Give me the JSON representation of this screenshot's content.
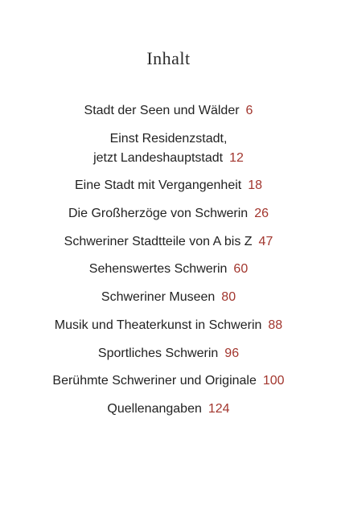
{
  "title": "Inhalt",
  "colors": {
    "text": "#222222",
    "page_number": "#a2362e"
  },
  "entries": [
    {
      "text": "Stadt der Seen und Wälder",
      "page": "6"
    },
    {
      "line1": "Einst Residenzstadt,",
      "line2": "jetzt Landeshauptstadt",
      "page": "12"
    },
    {
      "text": "Eine Stadt mit Vergangenheit",
      "page": "18"
    },
    {
      "text": "Die Großherzöge von Schwerin",
      "page": "26"
    },
    {
      "text": "Schweriner Stadtteile von A bis Z",
      "page": "47"
    },
    {
      "text": "Sehenswertes Schwerin",
      "page": "60"
    },
    {
      "text": "Schweriner Museen",
      "page": "80"
    },
    {
      "text": "Musik und Theaterkunst in Schwerin",
      "page": "88"
    },
    {
      "text": "Sportliches Schwerin",
      "page": "96"
    },
    {
      "text": "Berühmte Schweriner und Originale",
      "page": "100"
    },
    {
      "text": "Quellenangaben",
      "page": "124"
    }
  ]
}
